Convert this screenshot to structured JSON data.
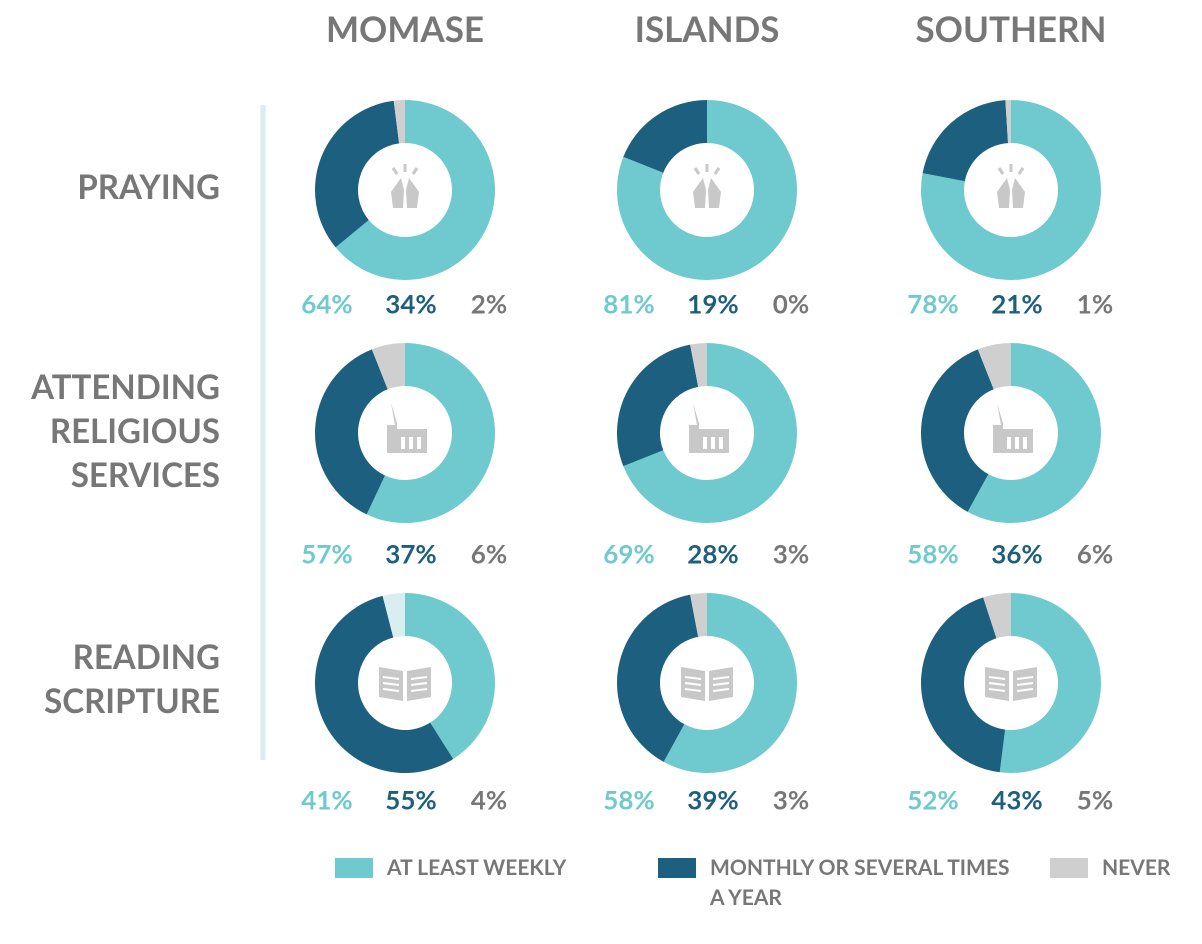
{
  "columns": [
    "MOMASE",
    "ISLANDS",
    "SOUTHERN"
  ],
  "rows": [
    "PRAYING",
    "ATTENDING RELIGIOUS SERVICES",
    "READING SCRIPTURE"
  ],
  "chart_data": [
    {
      "type": "pie",
      "categories": [
        "AT LEAST WEEKLY",
        "MONTHLY OR SEVERAL TIMES A YEAR",
        "NEVER"
      ],
      "values": [
        64,
        34,
        2
      ],
      "value_labels": [
        "64%",
        "34%",
        "2%"
      ],
      "colors": [
        "#6ecace",
        "#1c5f7e",
        "#cfcfcf"
      ]
    },
    {
      "type": "pie",
      "categories": [
        "AT LEAST WEEKLY",
        "MONTHLY OR SEVERAL TIMES A YEAR",
        "NEVER"
      ],
      "values": [
        81,
        19,
        0
      ],
      "value_labels": [
        "81%",
        "19%",
        "0%"
      ],
      "colors": [
        "#6ecace",
        "#1c5f7e",
        "#cfcfcf"
      ]
    },
    {
      "type": "pie",
      "categories": [
        "AT LEAST WEEKLY",
        "MONTHLY OR SEVERAL TIMES A YEAR",
        "NEVER"
      ],
      "values": [
        78,
        21,
        1
      ],
      "value_labels": [
        "78%",
        "21%",
        "1%"
      ],
      "colors": [
        "#6ecace",
        "#1c5f7e",
        "#cfcfcf"
      ]
    },
    {
      "type": "pie",
      "categories": [
        "AT LEAST WEEKLY",
        "MONTHLY OR SEVERAL TIMES A YEAR",
        "NEVER"
      ],
      "values": [
        57,
        37,
        6
      ],
      "value_labels": [
        "57%",
        "37%",
        "6%"
      ],
      "colors": [
        "#6ecace",
        "#1c5f7e",
        "#cfcfcf"
      ]
    },
    {
      "type": "pie",
      "categories": [
        "AT LEAST WEEKLY",
        "MONTHLY OR SEVERAL TIMES A YEAR",
        "NEVER"
      ],
      "values": [
        69,
        28,
        3
      ],
      "value_labels": [
        "69%",
        "28%",
        "3%"
      ],
      "colors": [
        "#6ecace",
        "#1c5f7e",
        "#cfcfcf"
      ]
    },
    {
      "type": "pie",
      "categories": [
        "AT LEAST WEEKLY",
        "MONTHLY OR SEVERAL TIMES A YEAR",
        "NEVER"
      ],
      "values": [
        58,
        36,
        6
      ],
      "value_labels": [
        "58%",
        "36%",
        "6%"
      ],
      "colors": [
        "#6ecace",
        "#1c5f7e",
        "#cfcfcf"
      ]
    },
    {
      "type": "pie",
      "categories": [
        "AT LEAST WEEKLY",
        "MONTHLY OR SEVERAL TIMES A YEAR",
        "NEVER"
      ],
      "values": [
        41,
        55,
        4
      ],
      "value_labels": [
        "41%",
        "55%",
        "4%"
      ],
      "colors": [
        "#6ecace",
        "#1c5f7e",
        "#d8eef0"
      ]
    },
    {
      "type": "pie",
      "categories": [
        "AT LEAST WEEKLY",
        "MONTHLY OR SEVERAL TIMES A YEAR",
        "NEVER"
      ],
      "values": [
        58,
        39,
        3
      ],
      "value_labels": [
        "58%",
        "39%",
        "3%"
      ],
      "colors": [
        "#6ecace",
        "#1c5f7e",
        "#cfcfcf"
      ]
    },
    {
      "type": "pie",
      "categories": [
        "AT LEAST WEEKLY",
        "MONTHLY OR SEVERAL TIMES A YEAR",
        "NEVER"
      ],
      "values": [
        52,
        43,
        5
      ],
      "value_labels": [
        "52%",
        "43%",
        "5%"
      ],
      "colors": [
        "#6ecace",
        "#1c5f7e",
        "#cfcfcf"
      ]
    }
  ]
}
